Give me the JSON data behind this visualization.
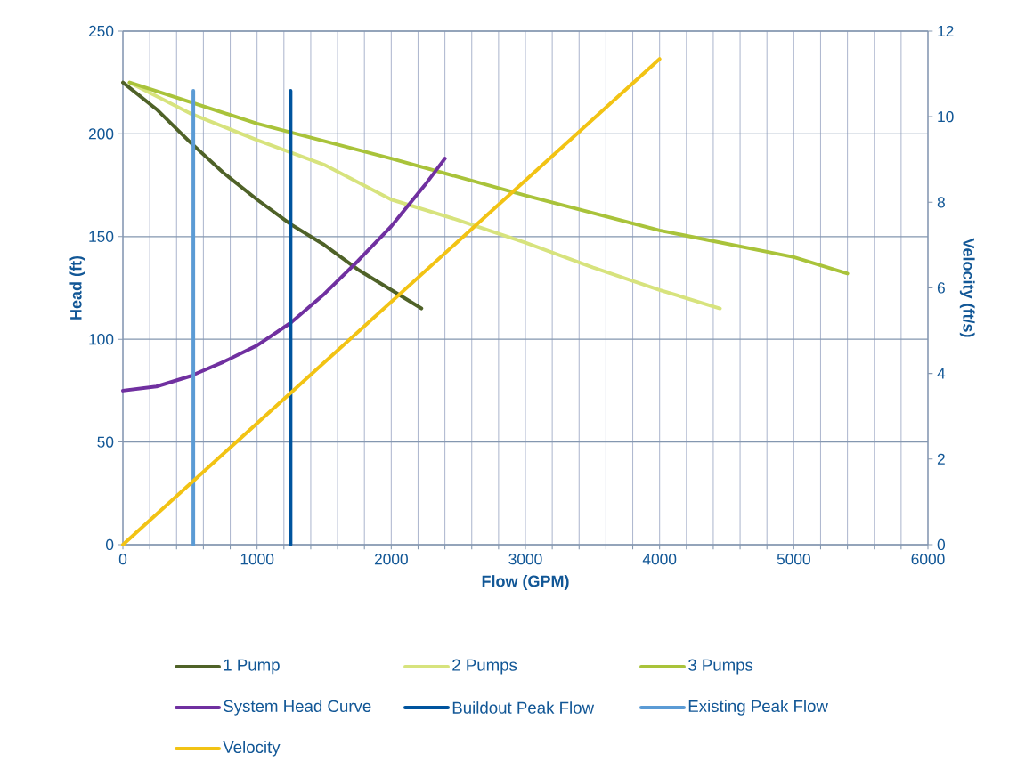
{
  "chart_data": {
    "type": "line",
    "xlabel": "Flow (GPM)",
    "ylabel": "Head (ft)",
    "y2label": "Velocity (ft/s)",
    "xlim": [
      0,
      6000
    ],
    "ylim": [
      0,
      250
    ],
    "y2lim": [
      0,
      12
    ],
    "xticks": [
      0,
      {
        "value": 200,
        "label": null
      },
      {
        "value": 400,
        "label": null
      },
      {
        "value": 600,
        "label": null
      },
      {
        "value": 800,
        "label": null
      },
      1000,
      {
        "value": 1200,
        "label": null
      },
      {
        "value": 1400,
        "label": null
      },
      {
        "value": 1600,
        "label": null
      },
      {
        "value": 1800,
        "label": null
      },
      2000,
      {
        "value": 2200,
        "label": null
      },
      {
        "value": 2400,
        "label": null
      },
      {
        "value": 2600,
        "label": null
      },
      {
        "value": 2800,
        "label": null
      },
      3000,
      {
        "value": 3200,
        "label": null
      },
      {
        "value": 3400,
        "label": null
      },
      {
        "value": 3600,
        "label": null
      },
      {
        "value": 3800,
        "label": null
      },
      4000,
      {
        "value": 4200,
        "label": null
      },
      {
        "value": 4400,
        "label": null
      },
      {
        "value": 4600,
        "label": null
      },
      {
        "value": 4800,
        "label": null
      },
      5000,
      {
        "value": 5200,
        "label": null
      },
      {
        "value": 5400,
        "label": null
      },
      {
        "value": 5600,
        "label": null
      },
      {
        "value": 5800,
        "label": null
      },
      6000
    ],
    "yticks": [
      0,
      50,
      100,
      150,
      200,
      250
    ],
    "y2ticks": [
      0,
      2,
      4,
      6,
      8,
      10,
      12
    ],
    "grid": true,
    "legend": "bottom",
    "series": [
      {
        "name": "1 Pump",
        "color": "#4f6228",
        "x": [
          0,
          250,
          500,
          750,
          1000,
          1250,
          1500,
          1750,
          2000,
          2225
        ],
        "values": [
          225,
          212,
          196,
          181,
          168,
          156,
          146,
          134,
          124,
          115
        ]
      },
      {
        "name": "2 Pumps",
        "color": "#d7e37d",
        "x": [
          50,
          500,
          1000,
          1500,
          2000,
          2500,
          3000,
          3500,
          4000,
          4450
        ],
        "values": [
          225,
          210,
          197,
          185,
          168,
          158,
          147,
          135,
          124,
          115
        ]
      },
      {
        "name": "3 Pumps",
        "color": "#a9c33a",
        "x": [
          50,
          1000,
          2000,
          3000,
          4000,
          5000,
          5400
        ],
        "values": [
          225,
          205,
          188,
          170,
          153,
          140,
          132
        ]
      },
      {
        "name": "System Head Curve",
        "color": "#7030a0",
        "x": [
          0,
          250,
          500,
          750,
          1000,
          1250,
          1500,
          1750,
          2000,
          2250,
          2400
        ],
        "values": [
          75,
          77,
          82,
          89,
          97,
          108,
          122,
          138,
          155,
          175,
          188
        ]
      },
      {
        "name": "Buildout Peak Flow",
        "color": "#00549e",
        "x": [
          1250,
          1250
        ],
        "values": [
          0,
          221
        ]
      },
      {
        "name": "Existing Peak Flow",
        "color": "#5b9bd5",
        "x": [
          525,
          525
        ],
        "values": [
          0,
          221
        ]
      },
      {
        "name": "Velocity",
        "color": "#f2c314",
        "axis": "y2",
        "x": [
          0,
          4000
        ],
        "values": [
          0,
          11.35
        ]
      }
    ]
  }
}
